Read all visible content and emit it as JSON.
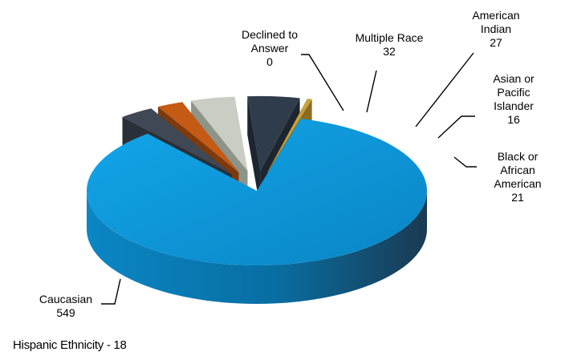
{
  "chart_data": {
    "type": "pie",
    "title": "",
    "three_d": true,
    "legend": "none",
    "slices": [
      {
        "name": "Caucasian",
        "value": 549,
        "color": "#0a8fd0",
        "side_color": "#075f8c",
        "exploded": false
      },
      {
        "name": "Black or African American",
        "value": 21,
        "color": "#3f4854",
        "side_color": "#2a3039",
        "exploded": true
      },
      {
        "name": "Asian or Pacific Islander",
        "value": 16,
        "color": "#c45a14",
        "side_color": "#7e3a0c",
        "exploded": true
      },
      {
        "name": "American Indian",
        "value": 27,
        "color": "#c9cdc3",
        "side_color": "#8f9489",
        "exploded": true
      },
      {
        "name": "Multiple Race",
        "value": 32,
        "color": "#2f3c4b",
        "side_color": "#1c2530",
        "exploded": true
      },
      {
        "name": "Declined to Answer",
        "value": 0,
        "color": "#c9a13a",
        "side_color": "#8a6d22",
        "exploded": true
      }
    ],
    "labels": [
      {
        "lines": [
          "Caucasian",
          "549"
        ]
      },
      {
        "lines": [
          "Black or",
          "African",
          "American",
          "21"
        ]
      },
      {
        "lines": [
          "Asian or",
          "Pacific",
          "Islander",
          "16"
        ]
      },
      {
        "lines": [
          "American",
          "Indian",
          "27"
        ]
      },
      {
        "lines": [
          "Multiple  Race",
          "32"
        ]
      },
      {
        "lines": [
          "Declined to",
          "Answer",
          "0"
        ]
      }
    ],
    "footnote": "Hispanic Ethnicity - 18"
  }
}
